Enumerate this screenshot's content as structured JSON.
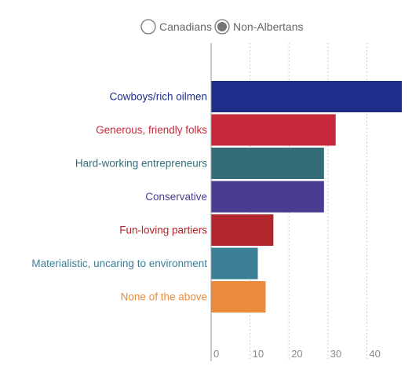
{
  "legend": {
    "options": [
      {
        "label": "Canadians",
        "selected": false
      },
      {
        "label": "Non-Albertans",
        "selected": true
      }
    ]
  },
  "chart_data": {
    "type": "bar",
    "orientation": "horizontal",
    "title": "",
    "xlabel": "",
    "ylabel": "",
    "categories": [
      "Cowboys/rich oilmen",
      "Generous, friendly folks",
      "Hard-working entrepreneurs",
      "Conservative",
      "Fun-loving partiers",
      "Materialistic, uncaring to environment",
      "None of the above"
    ],
    "values": [
      49,
      32,
      29,
      29,
      16,
      12,
      14
    ],
    "colors": [
      "#1f2d8a",
      "#c8283c",
      "#346d78",
      "#4b3c91",
      "#b0262a",
      "#3b7f96",
      "#e98b3a"
    ],
    "xlim": [
      0,
      48
    ],
    "xticks": [
      0,
      10,
      20,
      30,
      40
    ],
    "xtick_labels": [
      "0",
      "10",
      "20",
      "30",
      "40"
    ],
    "grid": true,
    "legend_position": "top-center"
  }
}
